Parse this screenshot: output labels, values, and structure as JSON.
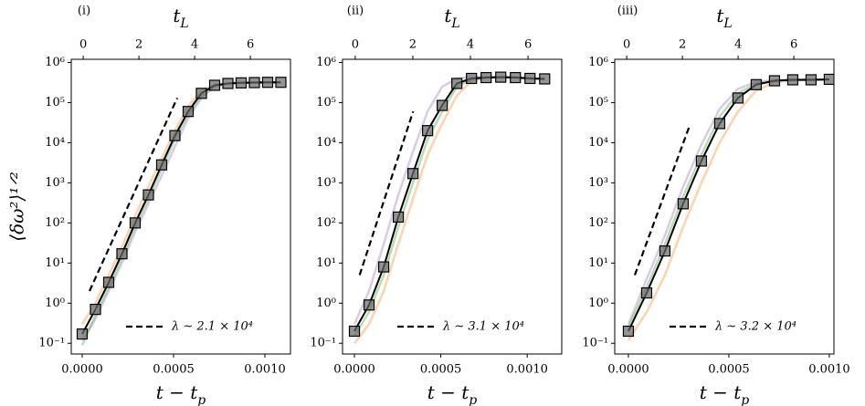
{
  "chart_data": [
    {
      "type": "line",
      "panel_label": "(i)",
      "xlabel": "t − tp",
      "x2label": "tL",
      "ylabel": "⟨δω²⟩¹ᐟ²",
      "yscale": "log",
      "xlim": [
        -6e-05,
        0.00114
      ],
      "xticks": [
        {
          "value": 0,
          "label": "0.0000"
        },
        {
          "value": 0.0005,
          "label": "0.0005"
        },
        {
          "value": 0.001,
          "label": "0.0010"
        }
      ],
      "x2lim": [
        -0.43,
        7.44
      ],
      "x2ticks": [
        0,
        2,
        4,
        6
      ],
      "ylim": [
        0.054,
        1200000
      ],
      "yticks": [
        {
          "value": 0.1,
          "label": "10⁻¹"
        },
        {
          "value": 1,
          "label": "10⁰"
        },
        {
          "value": 10,
          "label": "10¹"
        },
        {
          "value": 100,
          "label": "10²"
        },
        {
          "value": 1000,
          "label": "10³"
        },
        {
          "value": 10000,
          "label": "10⁴"
        },
        {
          "value": 100000,
          "label": "10⁵"
        },
        {
          "value": 1000000,
          "label": "10⁶"
        }
      ],
      "series": [
        {
          "color": "#9467bd",
          "x": [
            0,
            7.25e-05,
            0.000145,
            0.0002175,
            0.00029,
            0.0003625,
            0.000435,
            0.0005075,
            0.00058,
            0.0006525,
            0.000725,
            0.0007975,
            0.00087,
            0.0009425,
            0.001015,
            0.0010875
          ],
          "values": [
            0.12,
            0.4,
            2,
            10,
            60,
            300,
            1500,
            8000,
            40000,
            130000,
            250000,
            300000,
            310000,
            315000,
            320000,
            320000
          ]
        },
        {
          "color": "#ff7f0e",
          "x": [
            0,
            7.25e-05,
            0.000145,
            0.0002175,
            0.00029,
            0.0003625,
            0.000435,
            0.0005075,
            0.00058,
            0.0006525,
            0.000725,
            0.0007975,
            0.00087,
            0.0009425,
            0.001015,
            0.0010875
          ],
          "values": [
            0.3,
            1,
            5,
            25,
            150,
            800,
            4000,
            20000,
            80000,
            200000,
            280000,
            300000,
            310000,
            315000,
            320000,
            320000
          ]
        },
        {
          "color": "#2ca02c",
          "x": [
            0,
            7.25e-05,
            0.000145,
            0.0002175,
            0.00029,
            0.0003625,
            0.000435,
            0.0005075,
            0.00058,
            0.0006525,
            0.000725,
            0.0007975,
            0.00087,
            0.0009425,
            0.001015,
            0.0010875
          ],
          "values": [
            0.09,
            0.5,
            2.5,
            13,
            80,
            400,
            2200,
            12000,
            50000,
            150000,
            260000,
            300000,
            310000,
            315000,
            320000,
            320000
          ]
        },
        {
          "color": "#000000",
          "marker": "square",
          "x": [
            0,
            7.25e-05,
            0.000145,
            0.0002175,
            0.00029,
            0.0003625,
            0.000435,
            0.0005075,
            0.00058,
            0.0006525,
            0.000725,
            0.0007975,
            0.00087,
            0.0009425,
            0.001015,
            0.0010875
          ],
          "values": [
            0.17,
            0.7,
            3.3,
            17,
            100,
            500,
            2800,
            15000,
            60000,
            170000,
            270000,
            300000,
            310000,
            315000,
            320000,
            320000
          ]
        },
        {
          "name": "λ ∼ 2.1 × 10⁴",
          "color": "#000000",
          "dash": "dashed",
          "x": [
            4e-05,
            0.00052
          ],
          "values": [
            2,
            130000
          ]
        }
      ]
    },
    {
      "type": "line",
      "panel_label": "(ii)",
      "xlabel": "t − tp",
      "x2label": "tL",
      "yscale": "log",
      "xlim": [
        -6.88e-05,
        0.0012
      ],
      "xticks": [
        {
          "value": 0,
          "label": "0.0000"
        },
        {
          "value": 0.0005,
          "label": "0.0005"
        },
        {
          "value": 0.001,
          "label": "0.0010"
        }
      ],
      "x2lim": [
        -0.44,
        7.17
      ],
      "x2ticks": [
        0,
        2,
        4,
        6
      ],
      "ylim": [
        0.054,
        1200000
      ],
      "yticks": [
        {
          "value": 0.1,
          "label": "10⁻¹"
        },
        {
          "value": 1,
          "label": "10⁰"
        },
        {
          "value": 10,
          "label": "10¹"
        },
        {
          "value": 100,
          "label": "10²"
        },
        {
          "value": 1000,
          "label": "10³"
        },
        {
          "value": 10000,
          "label": "10⁴"
        },
        {
          "value": 100000,
          "label": "10⁵"
        },
        {
          "value": 1000000,
          "label": "10⁶"
        }
      ],
      "series": [
        {
          "color": "#9467bd",
          "x": [
            0,
            8.47e-05,
            0.0001694,
            0.0002541,
            0.0003388,
            0.0004235,
            0.0005082,
            0.0005929,
            0.0006776,
            0.0007623,
            0.000847,
            0.0009317,
            0.0010164,
            0.0011011
          ],
          "values": [
            0.3,
            2,
            30,
            500,
            6000,
            60000,
            250000,
            400000,
            430000,
            440000,
            440000,
            430000,
            410000,
            400000
          ]
        },
        {
          "color": "#ff7f0e",
          "x": [
            0,
            8.47e-05,
            0.0001694,
            0.0002541,
            0.0003388,
            0.0004235,
            0.0005082,
            0.0005929,
            0.0006776,
            0.0007623,
            0.000847,
            0.0009317,
            0.0010164,
            0.0011011
          ],
          "values": [
            0.1,
            0.3,
            2,
            30,
            400,
            5000,
            30000,
            150000,
            350000,
            420000,
            430000,
            420000,
            400000,
            390000
          ]
        },
        {
          "color": "#2ca02c",
          "x": [
            0,
            8.47e-05,
            0.0001694,
            0.0002541,
            0.0003388,
            0.0004235,
            0.0005082,
            0.0005929,
            0.0006776,
            0.0007623,
            0.000847,
            0.0009317,
            0.0010164,
            0.0011011
          ],
          "values": [
            0.15,
            0.6,
            5,
            80,
            1000,
            12000,
            60000,
            250000,
            380000,
            420000,
            430000,
            420000,
            400000,
            390000
          ]
        },
        {
          "color": "#000000",
          "marker": "square",
          "x": [
            0,
            8.47e-05,
            0.0001694,
            0.0002541,
            0.0003388,
            0.0004235,
            0.0005082,
            0.0005929,
            0.0006776,
            0.0007623,
            0.000847,
            0.0009317,
            0.0010164,
            0.0011011
          ],
          "values": [
            0.2,
            0.9,
            8,
            140,
            1700,
            20000,
            85000,
            300000,
            400000,
            420000,
            430000,
            420000,
            400000,
            390000
          ]
        },
        {
          "name": "λ ∼ 3.1 × 10⁴",
          "color": "#000000",
          "dash": "dashed",
          "x": [
            3e-05,
            0.00034
          ],
          "values": [
            5,
            60000
          ]
        }
      ]
    },
    {
      "type": "line",
      "panel_label": "(iii)",
      "xlabel": "t − tp",
      "x2label": "tL",
      "yscale": "log",
      "xlim": [
        -6.8e-05,
        0.001023
      ],
      "xticks": [
        {
          "value": 0,
          "label": "0.0000"
        },
        {
          "value": 0.0005,
          "label": "0.0005"
        },
        {
          "value": 0.001,
          "label": "0.0010"
        }
      ],
      "x2lim": [
        -0.43,
        7.44
      ],
      "x2ticks": [
        0,
        2,
        4,
        6
      ],
      "ylim": [
        0.054,
        1200000
      ],
      "yticks": [
        {
          "value": 0.1,
          "label": "10⁻¹"
        },
        {
          "value": 1,
          "label": "10⁰"
        },
        {
          "value": 10,
          "label": "10¹"
        },
        {
          "value": 100,
          "label": "10²"
        },
        {
          "value": 1000,
          "label": "10³"
        },
        {
          "value": 10000,
          "label": "10⁴"
        },
        {
          "value": 100000,
          "label": "10⁵"
        },
        {
          "value": 1000000,
          "label": "10⁶"
        }
      ],
      "series": [
        {
          "color": "#9467bd",
          "x": [
            0,
            9.09e-05,
            0.0001818,
            0.0002727,
            0.0003636,
            0.0004545,
            0.0005454,
            0.0006363,
            0.0007272,
            0.0008181,
            0.000909,
            0.0009999
          ],
          "values": [
            0.3,
            4,
            50,
            800,
            9000,
            70000,
            220000,
            330000,
            360000,
            370000,
            370000,
            380000
          ]
        },
        {
          "color": "#ff7f0e",
          "x": [
            0,
            9.09e-05,
            0.0001818,
            0.0002727,
            0.0003636,
            0.0004545,
            0.0005454,
            0.0006363,
            0.0007272,
            0.0008181,
            0.000909,
            0.0009999
          ],
          "values": [
            0.12,
            0.6,
            5,
            80,
            1000,
            10000,
            60000,
            200000,
            320000,
            360000,
            370000,
            380000
          ]
        },
        {
          "color": "#2ca02c",
          "x": [
            0,
            9.09e-05,
            0.0001818,
            0.0002727,
            0.0003636,
            0.0004545,
            0.0005454,
            0.0006363,
            0.0007272,
            0.0008181,
            0.000909,
            0.0009999
          ],
          "values": [
            0.25,
            2.5,
            30,
            450,
            5000,
            45000,
            170000,
            300000,
            350000,
            370000,
            370000,
            380000
          ]
        },
        {
          "color": "#000000",
          "marker": "square",
          "x": [
            0,
            9.09e-05,
            0.0001818,
            0.0002727,
            0.0003636,
            0.0004545,
            0.0005454,
            0.0006363,
            0.0007272,
            0.0008181,
            0.000909,
            0.0009999
          ],
          "values": [
            0.2,
            1.8,
            20,
            300,
            3500,
            30000,
            130000,
            280000,
            350000,
            370000,
            370000,
            380000
          ]
        },
        {
          "name": "λ ∼ 3.2 × 10⁴",
          "color": "#000000",
          "dash": "dashed",
          "x": [
            3.2e-05,
            0.000305
          ],
          "values": [
            5,
            27000
          ]
        }
      ]
    }
  ]
}
